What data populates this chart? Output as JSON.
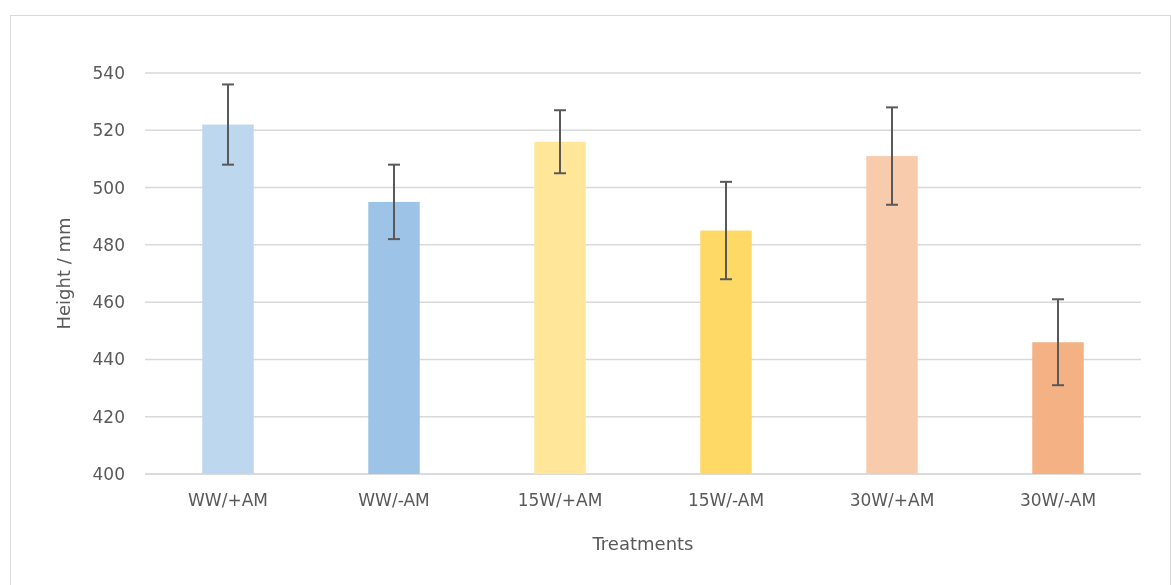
{
  "chart_data": {
    "type": "bar",
    "xlabel": "Treatments",
    "ylabel": "Height / mm",
    "categories": [
      "WW/+AM",
      "WW/-AM",
      "15W/+AM",
      "15W/-AM",
      "30W/+AM",
      "30W/-AM"
    ],
    "values": [
      522,
      495,
      516,
      485,
      511,
      446
    ],
    "errors": [
      14,
      13,
      11,
      17,
      17,
      15
    ],
    "colors": [
      "#bdd7ee",
      "#9dc3e6",
      "#ffe699",
      "#ffd966",
      "#f8cbad",
      "#f4b183"
    ],
    "ylim": [
      400,
      540
    ],
    "yticks": [
      400,
      420,
      440,
      460,
      480,
      500,
      520,
      540
    ],
    "grid": "y"
  }
}
